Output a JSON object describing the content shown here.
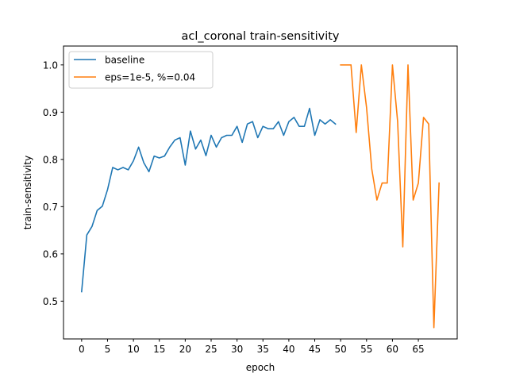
{
  "chart_data": {
    "type": "line",
    "title": "acl_coronal train-sensitivity",
    "xlabel": "epoch",
    "ylabel": "train-sensitivity",
    "xlim": [
      -3.5,
      72.5
    ],
    "ylim": [
      0.42,
      1.04
    ],
    "xticks": [
      0,
      5,
      10,
      15,
      20,
      25,
      30,
      35,
      40,
      45,
      50,
      55,
      60,
      65
    ],
    "yticks": [
      0.5,
      0.6,
      0.7,
      0.8,
      0.9,
      1.0
    ],
    "xtick_labels": [
      "0",
      "5",
      "10",
      "15",
      "20",
      "25",
      "30",
      "35",
      "40",
      "45",
      "50",
      "55",
      "60",
      "65"
    ],
    "ytick_labels": [
      "0.5",
      "0.6",
      "0.7",
      "0.8",
      "0.9",
      "1.0"
    ],
    "grid": false,
    "legend": "upper-left",
    "series": [
      {
        "name": "baseline",
        "color": "#1f77b4",
        "x": [
          0,
          1,
          2,
          3,
          4,
          5,
          6,
          7,
          8,
          9,
          10,
          11,
          12,
          13,
          14,
          15,
          16,
          17,
          18,
          19,
          20,
          21,
          22,
          23,
          24,
          25,
          26,
          27,
          28,
          29,
          30,
          31,
          32,
          33,
          34,
          35,
          36,
          37,
          38,
          39,
          40,
          41,
          42,
          43,
          44,
          45,
          46,
          47,
          48,
          49
        ],
        "y": [
          0.52,
          0.64,
          0.658,
          0.692,
          0.701,
          0.736,
          0.783,
          0.778,
          0.783,
          0.778,
          0.797,
          0.826,
          0.793,
          0.774,
          0.807,
          0.803,
          0.807,
          0.826,
          0.841,
          0.846,
          0.788,
          0.86,
          0.822,
          0.841,
          0.808,
          0.851,
          0.826,
          0.846,
          0.851,
          0.851,
          0.87,
          0.836,
          0.875,
          0.88,
          0.846,
          0.87,
          0.865,
          0.865,
          0.88,
          0.851,
          0.88,
          0.889,
          0.87,
          0.87,
          0.908,
          0.851,
          0.884,
          0.875,
          0.884,
          0.875
        ]
      },
      {
        "name": "eps=1e-5, %=0.04",
        "color": "#ff7f0e",
        "x": [
          50,
          51,
          52,
          53,
          54,
          55,
          56,
          57,
          58,
          59,
          60,
          61,
          62,
          63,
          64,
          65,
          66,
          67,
          68,
          69
        ],
        "y": [
          1.0,
          1.0,
          1.0,
          0.857,
          1.0,
          0.91,
          0.78,
          0.714,
          0.75,
          0.75,
          1.0,
          0.88,
          0.615,
          1.0,
          0.714,
          0.75,
          0.889,
          0.875,
          0.444,
          0.75
        ]
      }
    ]
  }
}
